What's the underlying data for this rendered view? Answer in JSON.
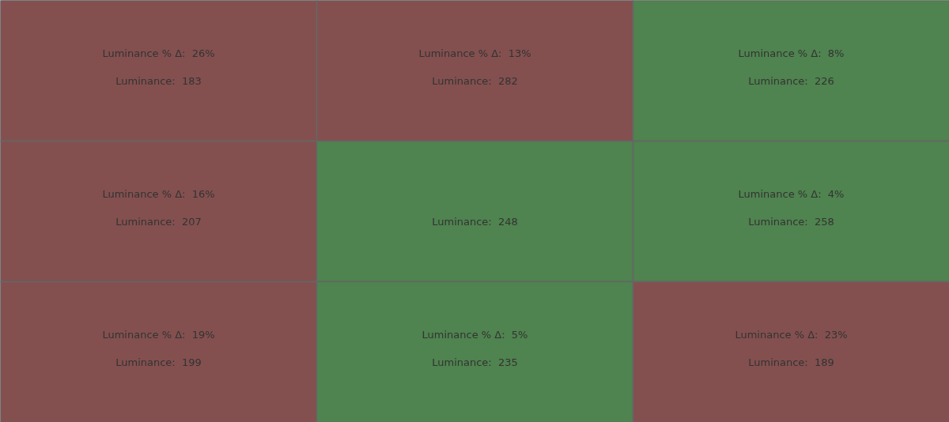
{
  "chart_data": {
    "type": "heatmap",
    "categories": [
      null,
      null,
      null
    ],
    "y_categories": [
      null,
      null,
      null
    ],
    "cells": [
      [
        183,
        282,
        226
      ],
      [
        207,
        248,
        258
      ],
      [
        199,
        235,
        189
      ]
    ],
    "cell_labels": [
      [
        "Luminance:  183",
        "Luminance:  282",
        "Luminance:  226"
      ],
      [
        "Luminance:  207",
        "Luminance:  248",
        "Luminance:  258"
      ],
      [
        "Luminance:  199",
        "Luminance:  235",
        "Luminance:  189"
      ]
    ],
    "annotations": [
      "Luminance % Δ:  26%",
      "Luminance % Δ:  13%",
      "Luminance % Δ:  8%",
      "Luminance % Δ:  16%",
      null,
      "Luminance % Δ:  4%",
      "Luminance % Δ:  19%",
      "Luminance % Δ:  5%",
      "Luminance % Δ:  23%"
    ],
    "colors": [
      [
        "#83504f",
        "#83504f",
        "#4f834f"
      ],
      [
        "#83504f",
        "#4f834f",
        "#4f834f"
      ],
      [
        "#83504f",
        "#4f834f",
        "#83504f"
      ]
    ]
  }
}
